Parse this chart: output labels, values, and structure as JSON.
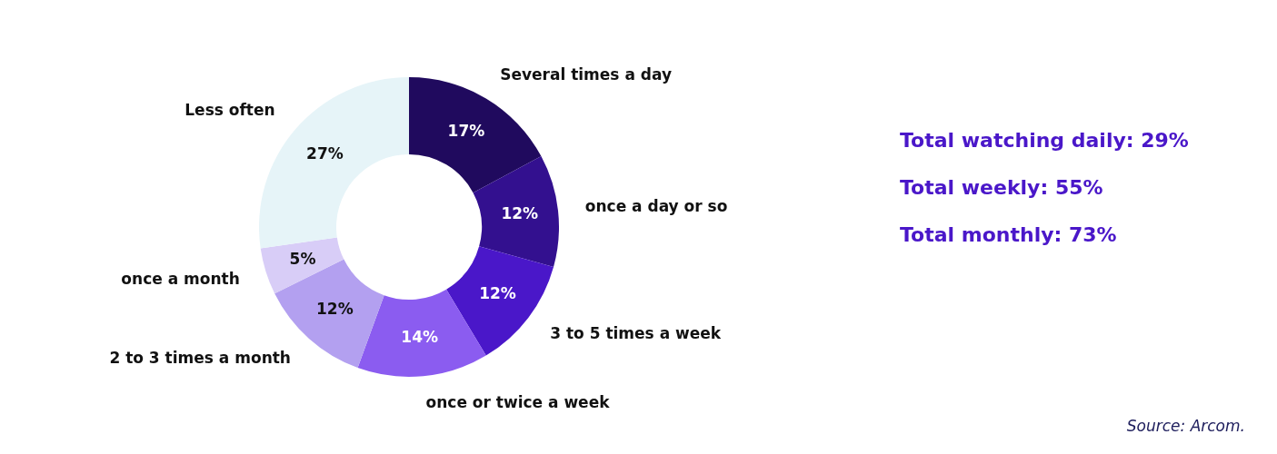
{
  "chart_data": {
    "type": "donut",
    "categories": [
      "Several times a  day",
      "once a  day or so",
      "3 to 5 times a  week",
      "once or twice a  week",
      "2 to 3 times a  month",
      "once a  month",
      "Less often"
    ],
    "values": [
      17,
      12,
      12,
      14,
      12,
      5,
      27
    ],
    "colors": [
      "#200a5e",
      "#33108f",
      "#4a17c9",
      "#8b5cf0",
      "#b3a0f0",
      "#d8cdf7",
      "#e6f4f8"
    ],
    "value_labels": [
      "17%",
      "12%",
      "12%",
      "14%",
      "12%",
      "5%",
      "27%"
    ],
    "annotations": [
      "Total watching daily: 29%",
      "Total weekly: 55%",
      "Total monthly: 73%",
      "Source:  Arcom."
    ]
  }
}
